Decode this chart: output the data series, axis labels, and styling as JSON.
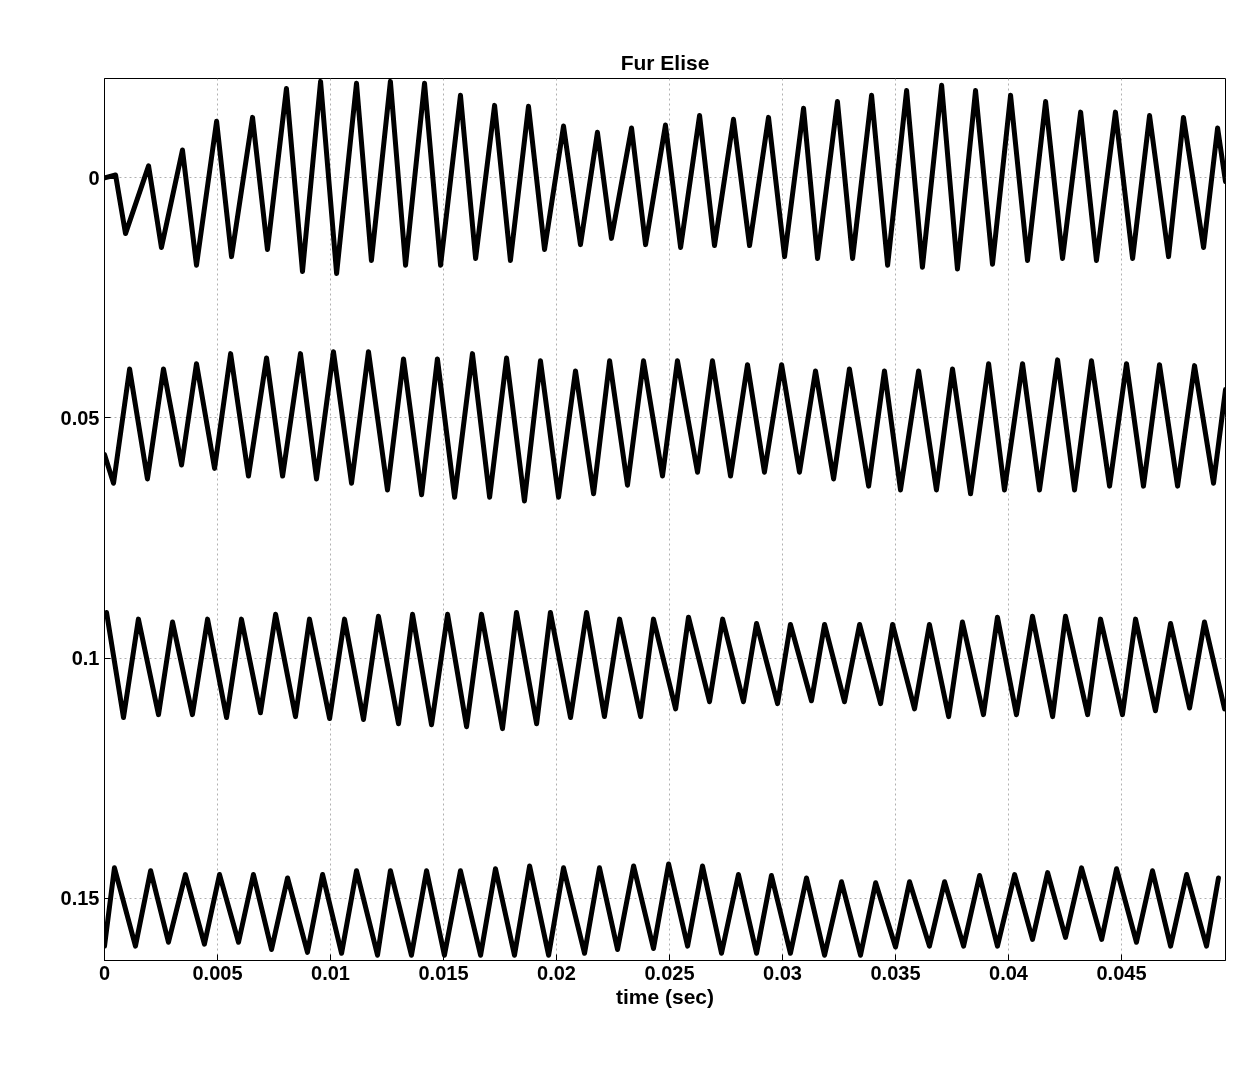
{
  "chart_data": {
    "type": "line",
    "title": "Fur Elise",
    "xlabel": "time (sec)",
    "xlim": [
      0,
      0.0496
    ],
    "ylim": [
      0.163,
      -0.0207
    ],
    "xticks": [
      0,
      0.005,
      0.01,
      0.015,
      0.02,
      0.025,
      0.03,
      0.035,
      0.04,
      0.045
    ],
    "yticks": [
      0,
      0.05,
      0.1,
      0.15
    ],
    "grid": true,
    "line_style": "solid",
    "series": [
      {
        "color": "#000000",
        "x": [
          0,
          0.00049,
          0.00093,
          0.00195,
          0.00252,
          0.00345,
          0.00407,
          0.00496,
          0.00562,
          0.00655,
          0.00721,
          0.00805,
          0.00876,
          0.00956,
          0.01027,
          0.01115,
          0.01181,
          0.01265,
          0.01332,
          0.01416,
          0.01487,
          0.01575,
          0.01642,
          0.01726,
          0.01796,
          0.01876,
          0.01947,
          0.02031,
          0.02106,
          0.02181,
          0.02243,
          0.02332,
          0.02394,
          0.02482,
          0.02549,
          0.02633,
          0.02699,
          0.02783,
          0.02854,
          0.02938,
          0.03009,
          0.03093,
          0.03155,
          0.03243,
          0.0331,
          0.03394,
          0.03465,
          0.03549,
          0.03619,
          0.03704,
          0.03774,
          0.03854,
          0.03929,
          0.04009,
          0.04084,
          0.04164,
          0.04239,
          0.04319,
          0.04389,
          0.04473,
          0.04549,
          0.04624,
          0.04708,
          0.04774,
          0.04863,
          0.04925,
          0.0496
        ],
        "values": [
          0,
          -0.0006,
          0.0116,
          -0.0025,
          0.0145,
          -0.0058,
          0.0182,
          -0.0118,
          0.0164,
          -0.0126,
          0.0149,
          -0.0186,
          0.0195,
          -0.0201,
          0.0199,
          -0.0197,
          0.0172,
          -0.0201,
          0.0182,
          -0.0197,
          0.0182,
          -0.0172,
          0.0168,
          -0.0151,
          0.0172,
          -0.0149,
          0.0149,
          -0.0108,
          0.0139,
          -0.0095,
          0.0126,
          -0.0104,
          0.0139,
          -0.011,
          0.0145,
          -0.013,
          0.0141,
          -0.0122,
          0.0141,
          -0.0126,
          0.0164,
          -0.0145,
          0.0168,
          -0.0159,
          0.0168,
          -0.0172,
          0.0182,
          -0.0182,
          0.0186,
          -0.0193,
          0.019,
          -0.0182,
          0.018,
          -0.0172,
          0.0172,
          -0.0159,
          0.0168,
          -0.0137,
          0.0172,
          -0.0137,
          0.0168,
          -0.013,
          0.0164,
          -0.0126,
          0.0145,
          -0.0104,
          0.0008
        ]
      },
      {
        "color": "#000000",
        "x": [
          0,
          0.0004,
          0.00111,
          0.0019,
          0.00261,
          0.00341,
          0.00407,
          0.00487,
          0.00558,
          0.00637,
          0.00717,
          0.00788,
          0.00867,
          0.00938,
          0.01013,
          0.01093,
          0.01168,
          0.01252,
          0.01323,
          0.01403,
          0.01473,
          0.01549,
          0.01628,
          0.01704,
          0.01779,
          0.01858,
          0.01929,
          0.02009,
          0.02084,
          0.02164,
          0.02235,
          0.02314,
          0.02385,
          0.02469,
          0.02535,
          0.02624,
          0.0269,
          0.0277,
          0.02845,
          0.0292,
          0.02996,
          0.03075,
          0.03146,
          0.03226,
          0.03296,
          0.03381,
          0.03451,
          0.03522,
          0.03602,
          0.03681,
          0.03752,
          0.03832,
          0.03912,
          0.03982,
          0.04062,
          0.04137,
          0.04217,
          0.04292,
          0.04367,
          0.04447,
          0.04522,
          0.04597,
          0.04668,
          0.04748,
          0.04823,
          0.04907,
          0.0496
        ],
        "values": [
          0.0576,
          0.0636,
          0.0398,
          0.0627,
          0.0398,
          0.0598,
          0.0387,
          0.0605,
          0.0366,
          0.0621,
          0.0375,
          0.0621,
          0.0366,
          0.0627,
          0.0362,
          0.0636,
          0.0362,
          0.065,
          0.0377,
          0.066,
          0.0377,
          0.0665,
          0.0366,
          0.0665,
          0.0375,
          0.0673,
          0.0381,
          0.0665,
          0.0402,
          0.0658,
          0.0381,
          0.064,
          0.0381,
          0.0621,
          0.0381,
          0.0613,
          0.0381,
          0.0621,
          0.0389,
          0.0613,
          0.0389,
          0.0613,
          0.0402,
          0.0627,
          0.0398,
          0.0642,
          0.0402,
          0.065,
          0.0402,
          0.065,
          0.0398,
          0.0658,
          0.0387,
          0.065,
          0.0387,
          0.065,
          0.0379,
          0.065,
          0.0381,
          0.0642,
          0.0387,
          0.0642,
          0.0389,
          0.0642,
          0.0391,
          0.0636,
          0.0441
        ]
      },
      {
        "color": "#000000",
        "x": [
          9e-05,
          0.00084,
          0.0015,
          0.00239,
          0.00301,
          0.00389,
          0.00456,
          0.0054,
          0.00606,
          0.0069,
          0.00757,
          0.00845,
          0.00907,
          0.00996,
          0.01062,
          0.01146,
          0.01212,
          0.01301,
          0.01363,
          0.01447,
          0.01518,
          0.01602,
          0.01668,
          0.01761,
          0.01823,
          0.01912,
          0.01973,
          0.02062,
          0.02133,
          0.02212,
          0.02279,
          0.02372,
          0.02429,
          0.02527,
          0.02584,
          0.02677,
          0.02735,
          0.02827,
          0.02885,
          0.02978,
          0.03035,
          0.03128,
          0.03186,
          0.03274,
          0.03341,
          0.03434,
          0.03487,
          0.03584,
          0.0365,
          0.03735,
          0.03796,
          0.03889,
          0.03951,
          0.04035,
          0.04106,
          0.04195,
          0.04252,
          0.0435,
          0.04407,
          0.04504,
          0.04562,
          0.0465,
          0.04717,
          0.04801,
          0.04867,
          0.04956
        ],
        "values": [
          0.0905,
          0.1124,
          0.0919,
          0.1118,
          0.0925,
          0.1118,
          0.0919,
          0.1124,
          0.0919,
          0.1114,
          0.0909,
          0.1122,
          0.0919,
          0.1126,
          0.0919,
          0.1128,
          0.0913,
          0.1137,
          0.0909,
          0.1139,
          0.0909,
          0.1143,
          0.0909,
          0.1147,
          0.0905,
          0.1137,
          0.0905,
          0.1124,
          0.0905,
          0.1122,
          0.0919,
          0.1122,
          0.0919,
          0.1106,
          0.0915,
          0.1091,
          0.0919,
          0.1091,
          0.0928,
          0.1095,
          0.093,
          0.1089,
          0.093,
          0.1091,
          0.093,
          0.1095,
          0.093,
          0.1106,
          0.093,
          0.1122,
          0.0925,
          0.1118,
          0.0915,
          0.1118,
          0.0913,
          0.1122,
          0.0913,
          0.1118,
          0.0919,
          0.1118,
          0.0919,
          0.111,
          0.0928,
          0.1104,
          0.0925,
          0.1106
        ]
      },
      {
        "color": "#000000",
        "x": [
          0,
          0.00044,
          0.00137,
          0.00204,
          0.00283,
          0.00358,
          0.00442,
          0.00509,
          0.00593,
          0.00659,
          0.00739,
          0.0081,
          0.00898,
          0.00965,
          0.01049,
          0.01115,
          0.01208,
          0.01265,
          0.01358,
          0.01425,
          0.01504,
          0.01575,
          0.01664,
          0.0173,
          0.01814,
          0.01881,
          0.01965,
          0.02031,
          0.02124,
          0.0219,
          0.0227,
          0.02341,
          0.02429,
          0.02496,
          0.0258,
          0.02646,
          0.0273,
          0.02805,
          0.02885,
          0.02951,
          0.03035,
          0.03106,
          0.03186,
          0.03261,
          0.03345,
          0.03412,
          0.035,
          0.03562,
          0.0365,
          0.03717,
          0.03801,
          0.03872,
          0.03951,
          0.04027,
          0.04106,
          0.04173,
          0.04252,
          0.04323,
          0.04412,
          0.04478,
          0.04566,
          0.04637,
          0.04717,
          0.04788,
          0.04876,
          0.04929
        ],
        "values": [
          0.16,
          0.1437,
          0.16,
          0.1443,
          0.1592,
          0.1451,
          0.1596,
          0.1451,
          0.1592,
          0.1451,
          0.1607,
          0.1458,
          0.1613,
          0.1451,
          0.1615,
          0.1443,
          0.1619,
          0.1443,
          0.1619,
          0.1443,
          0.1619,
          0.1443,
          0.1619,
          0.1439,
          0.1619,
          0.1433,
          0.1619,
          0.1437,
          0.1615,
          0.1437,
          0.1607,
          0.1433,
          0.1605,
          0.1429,
          0.16,
          0.1433,
          0.1615,
          0.1451,
          0.1615,
          0.1453,
          0.1615,
          0.1458,
          0.1619,
          0.1466,
          0.1619,
          0.1468,
          0.1602,
          0.1466,
          0.16,
          0.1466,
          0.16,
          0.1453,
          0.16,
          0.1451,
          0.1586,
          0.1447,
          0.1582,
          0.1437,
          0.1586,
          0.1439,
          0.1592,
          0.1443,
          0.16,
          0.1451,
          0.16,
          0.1458
        ]
      }
    ]
  }
}
